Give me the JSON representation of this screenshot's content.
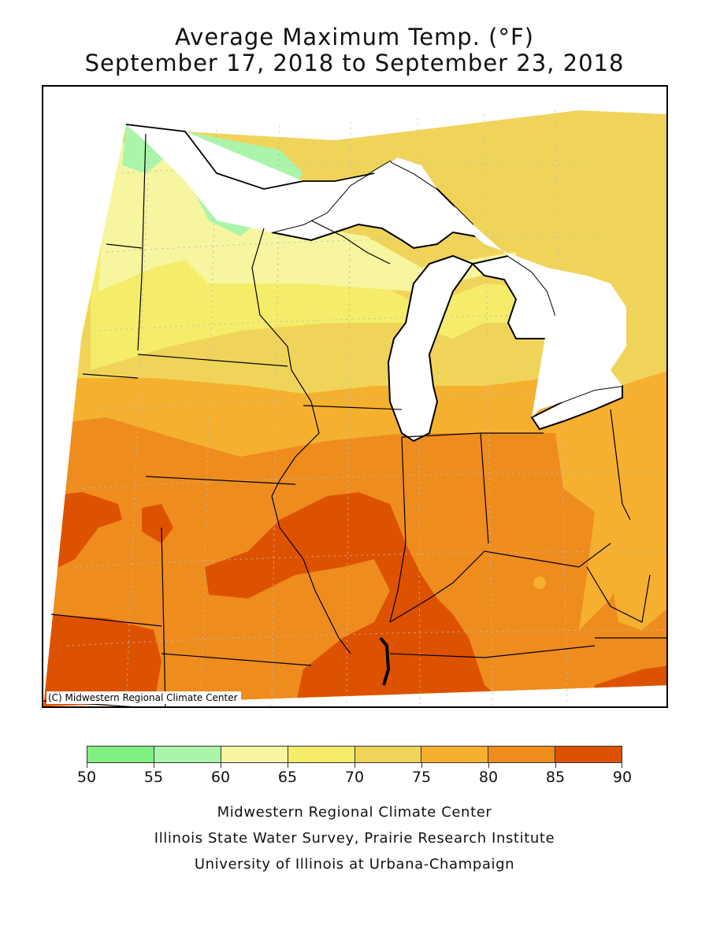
{
  "title": {
    "line1": "Average Maximum Temp. (°F)",
    "line2": "September 17, 2018 to September 23, 2018"
  },
  "map": {
    "copyright": "(C) Midwestern Regional Climate Center",
    "region_colors": {
      "water": "#ffffff",
      "t55_60": "#aaf5aa",
      "t60_65": "#f7f5a0",
      "t65_70": "#f5ec6a",
      "t70_75": "#f0d45a",
      "t75_80": "#f5b030",
      "t80_85": "#ee8c1e",
      "t85_90": "#dd5200"
    }
  },
  "legend": {
    "bins": [
      {
        "min": 50,
        "max": 55,
        "color": "#80f080"
      },
      {
        "min": 55,
        "max": 60,
        "color": "#aaf5aa"
      },
      {
        "min": 60,
        "max": 65,
        "color": "#f7f5a0"
      },
      {
        "min": 65,
        "max": 70,
        "color": "#f5ec6a"
      },
      {
        "min": 70,
        "max": 75,
        "color": "#f0d45a"
      },
      {
        "min": 75,
        "max": 80,
        "color": "#f5b030"
      },
      {
        "min": 80,
        "max": 85,
        "color": "#ee8c1e"
      },
      {
        "min": 85,
        "max": 90,
        "color": "#dd5200"
      }
    ],
    "ticks": [
      "50",
      "55",
      "60",
      "65",
      "70",
      "75",
      "80",
      "85",
      "90"
    ]
  },
  "credits": {
    "line1": "Midwestern Regional Climate Center",
    "line2": "Illinois State Water Survey, Prairie Research Institute",
    "line3": "University of Illinois at Urbana-Champaign"
  }
}
